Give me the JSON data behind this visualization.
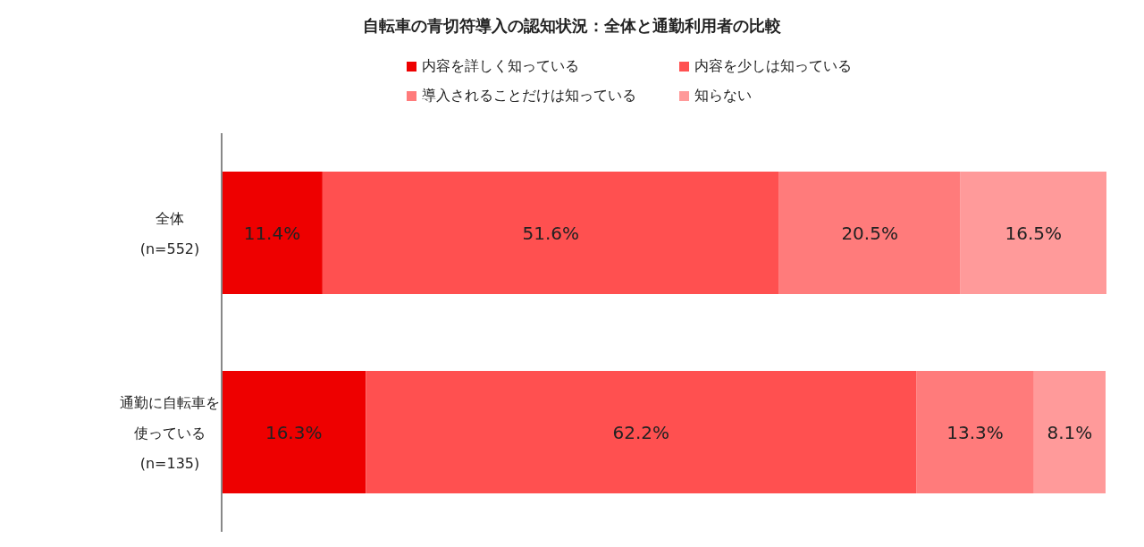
{
  "chart_data": {
    "type": "bar",
    "orientation": "horizontal",
    "stacked": true,
    "title": "自転車の青切符導入の認知状況：全体と通勤利用者の比較",
    "categories": [
      "全体\n(n=552)",
      "通勤に自転車を使っている\n(n=135)"
    ],
    "xlim": [
      0,
      100
    ],
    "legend": "top",
    "grid": false,
    "series": [
      {
        "name": "内容を詳しく知っている",
        "color": "#ee0000",
        "values": [
          11.4,
          16.3
        ],
        "value_labels": [
          "11.4%",
          "16.3%"
        ]
      },
      {
        "name": "内容を少しは知っている",
        "color": "#ff5050",
        "values": [
          51.6,
          62.2
        ],
        "value_labels": [
          "51.6%",
          "62.2%"
        ]
      },
      {
        "name": "導入されることだけは知っている",
        "color": "#ff7b7b",
        "values": [
          20.5,
          13.3
        ],
        "value_labels": [
          "20.5%",
          "13.3%"
        ]
      },
      {
        "name": "知らない",
        "color": "#ff9a9a",
        "values": [
          16.5,
          8.1
        ],
        "value_labels": [
          "16.5%",
          "8.1%"
        ]
      }
    ]
  }
}
